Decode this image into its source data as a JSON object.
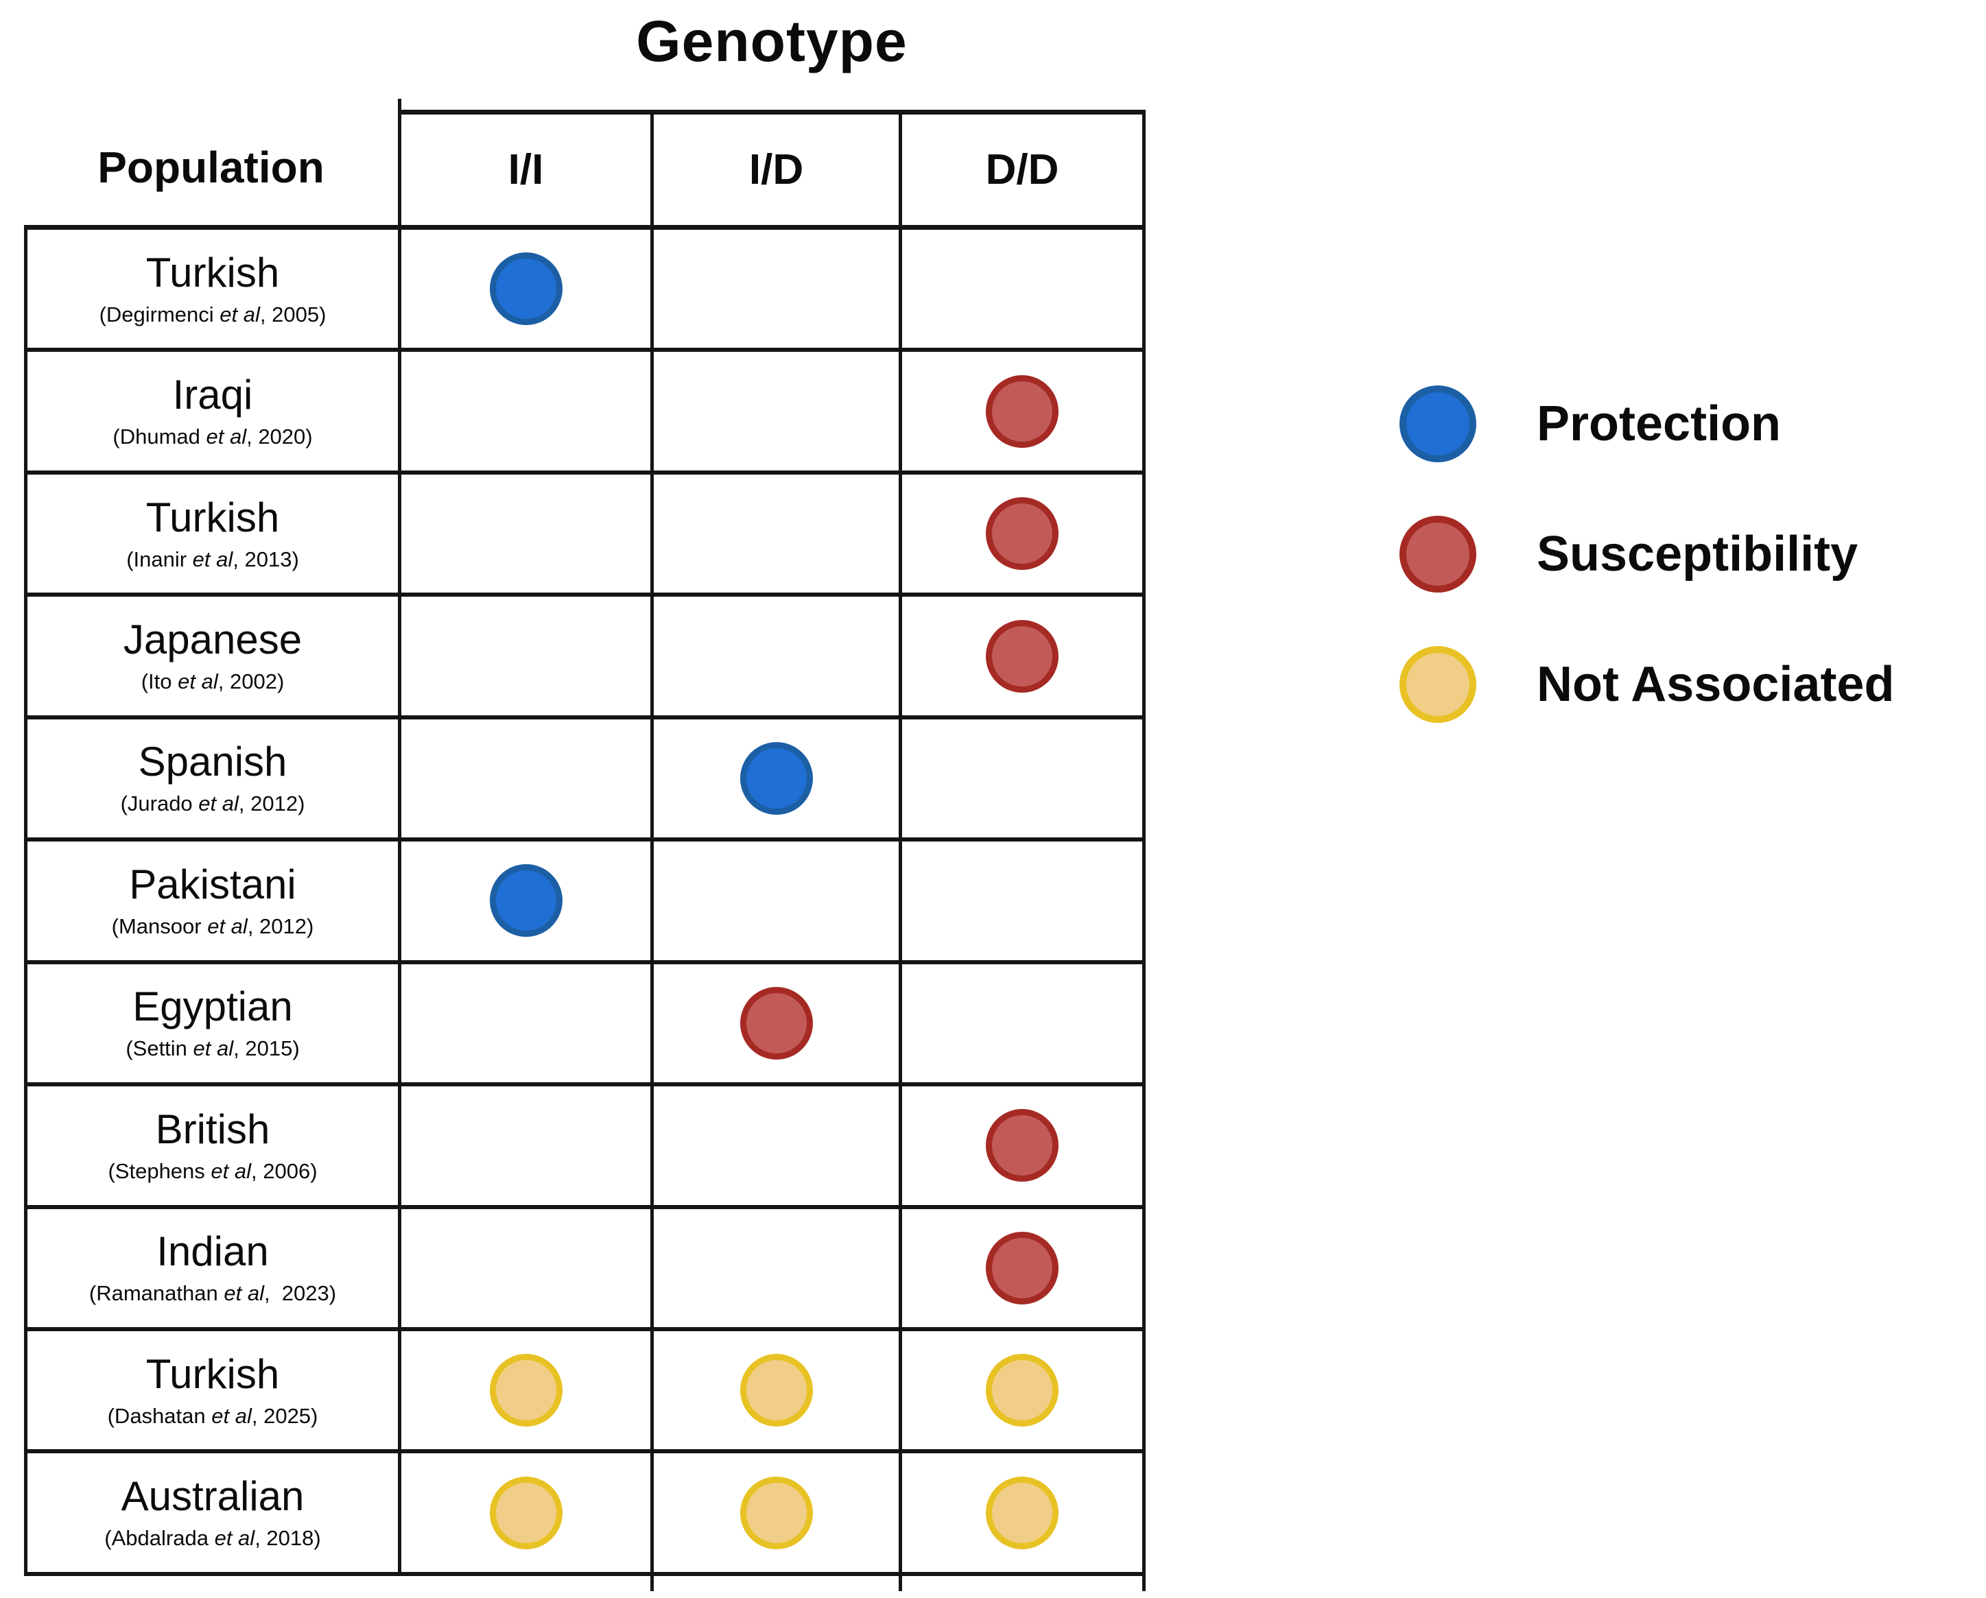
{
  "title": "Genotype",
  "table": {
    "population_header": "Population",
    "genotype_columns": [
      "I/I",
      "I/D",
      "D/D"
    ]
  },
  "status_colors": {
    "protection": {
      "fill": "#1F6FD4",
      "border": "#1C5FA4"
    },
    "susceptibility": {
      "fill": "#C25B58",
      "border": "#A52A24"
    },
    "not-associated": {
      "fill": "#F1CE87",
      "border": "#E8C224"
    }
  },
  "legend": [
    {
      "status": "protection",
      "label": "Protection"
    },
    {
      "status": "susceptibility",
      "label": "Susceptibility"
    },
    {
      "status": "not-associated",
      "label": "Not Associated"
    }
  ],
  "populations": [
    {
      "name": "Turkish",
      "citation_prefix": "(Degirmenci ",
      "citation_etal": "et al",
      "citation_suffix": ", 2005)",
      "dots": {
        "II": "protection"
      }
    },
    {
      "name": "Iraqi",
      "citation_prefix": "(Dhumad ",
      "citation_etal": "et al",
      "citation_suffix": ", 2020)",
      "dots": {
        "DD": "susceptibility"
      }
    },
    {
      "name": "Turkish",
      "citation_prefix": "(Inanir ",
      "citation_etal": "et al",
      "citation_suffix": ", 2013)",
      "dots": {
        "DD": "susceptibility"
      }
    },
    {
      "name": "Japanese",
      "citation_prefix": "(Ito ",
      "citation_etal": "et al",
      "citation_suffix": ", 2002)",
      "dots": {
        "DD": "susceptibility"
      }
    },
    {
      "name": "Spanish",
      "citation_prefix": "(Jurado ",
      "citation_etal": "et al",
      "citation_suffix": ", 2012)",
      "dots": {
        "ID": "protection"
      }
    },
    {
      "name": "Pakistani",
      "citation_prefix": "(Mansoor ",
      "citation_etal": "et al",
      "citation_suffix": ", 2012)",
      "dots": {
        "II": "protection"
      }
    },
    {
      "name": "Egyptian",
      "citation_prefix": "(Settin ",
      "citation_etal": "et al",
      "citation_suffix": ", 2015)",
      "dots": {
        "ID": "susceptibility"
      }
    },
    {
      "name": "British",
      "citation_prefix": "(Stephens ",
      "citation_etal": "et al",
      "citation_suffix": ", 2006)",
      "dots": {
        "DD": "susceptibility"
      }
    },
    {
      "name": "Indian",
      "citation_prefix": "(Ramanathan ",
      "citation_etal": "et al",
      "citation_suffix": ",  2023)",
      "dots": {
        "DD": "susceptibility"
      }
    },
    {
      "name": "Turkish",
      "citation_prefix": "(Dashatan ",
      "citation_etal": "et al",
      "citation_suffix": ", 2025)",
      "dots": {
        "II": "not-associated",
        "ID": "not-associated",
        "DD": "not-associated"
      }
    },
    {
      "name": "Australian",
      "citation_prefix": "(Abdalrada ",
      "citation_etal": "et al",
      "citation_suffix": ", 2018)",
      "dots": {
        "II": "not-associated",
        "ID": "not-associated",
        "DD": "not-associated"
      }
    }
  ]
}
